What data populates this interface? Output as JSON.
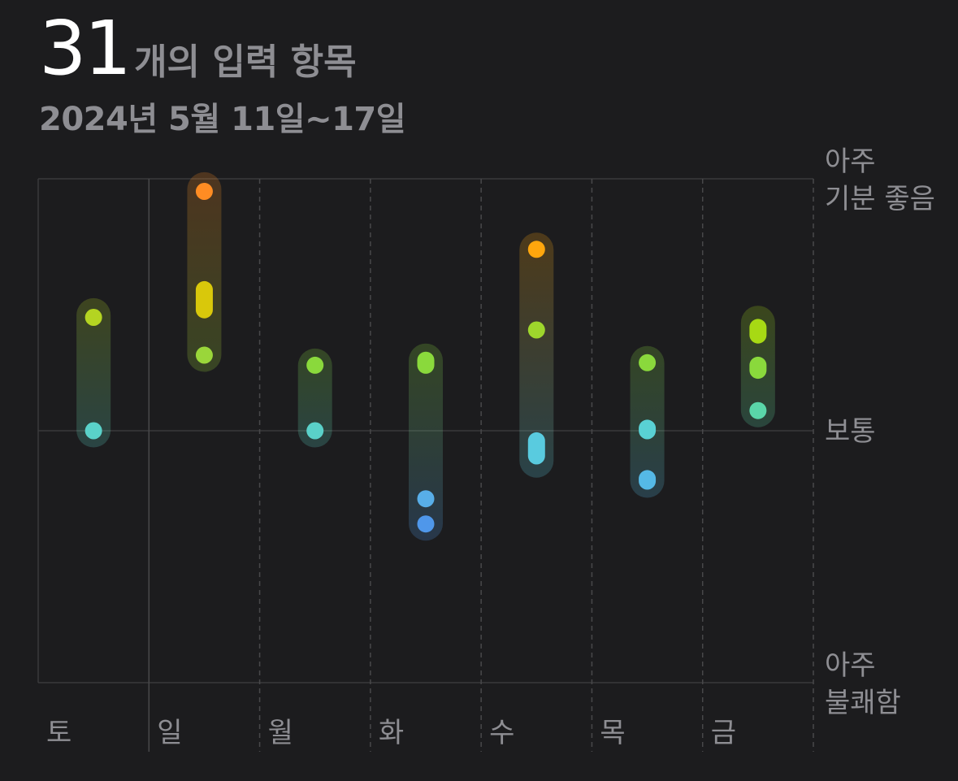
{
  "header": {
    "count": "31",
    "count_label": "개의 입력 항목",
    "date_range": "2024년 5월 11일~17일"
  },
  "chart_data": {
    "type": "range-dot",
    "x_categories": [
      "토",
      "일",
      "월",
      "화",
      "수",
      "목",
      "금"
    ],
    "y_labels": [
      {
        "value": 1,
        "lines": [
          "아주",
          "기분 좋음"
        ]
      },
      {
        "value": 0,
        "lines": [
          "보통"
        ]
      },
      {
        "value": -1,
        "lines": [
          "아주",
          "불쾌함"
        ]
      }
    ],
    "ylim": [
      -1,
      1
    ],
    "grid": true,
    "days": [
      {
        "day": "토",
        "range": [
          0.0,
          0.46
        ],
        "entries": [
          {
            "from": 0.45,
            "to": 0.45,
            "color": "#b4d422"
          },
          {
            "from": 0.0,
            "to": 0.0,
            "color": "#5ad1c9"
          }
        ]
      },
      {
        "day": "일",
        "range": [
          0.3,
          0.96
        ],
        "entries": [
          {
            "from": 0.95,
            "to": 0.95,
            "color": "#ff8c23"
          },
          {
            "from": 0.48,
            "to": 0.56,
            "color": "#d9c80b"
          },
          {
            "from": 0.3,
            "to": 0.3,
            "color": "#9ad63a"
          }
        ]
      },
      {
        "day": "월",
        "range": [
          0.0,
          0.26
        ],
        "entries": [
          {
            "from": 0.26,
            "to": 0.26,
            "color": "#8ad93c"
          },
          {
            "from": 0.0,
            "to": 0.0,
            "color": "#5ad1c9"
          }
        ]
      },
      {
        "day": "화",
        "range": [
          -0.37,
          0.28
        ],
        "entries": [
          {
            "from": 0.26,
            "to": 0.28,
            "color": "#8ad93c"
          },
          {
            "from": -0.27,
            "to": -0.27,
            "color": "#58aee8"
          },
          {
            "from": -0.37,
            "to": -0.37,
            "color": "#4f97ea"
          }
        ]
      },
      {
        "day": "수",
        "range": [
          -0.12,
          0.72
        ],
        "entries": [
          {
            "from": 0.72,
            "to": 0.72,
            "color": "#ffa60d"
          },
          {
            "from": 0.4,
            "to": 0.4,
            "color": "#9ed62c"
          },
          {
            "from": -0.1,
            "to": -0.04,
            "color": "#59cbdf"
          }
        ]
      },
      {
        "day": "목",
        "range": [
          -0.2,
          0.27
        ],
        "entries": [
          {
            "from": 0.27,
            "to": 0.27,
            "color": "#8ad93c"
          },
          {
            "from": 0.0,
            "to": 0.01,
            "color": "#59d1d4"
          },
          {
            "from": -0.2,
            "to": -0.19,
            "color": "#55b9e6"
          }
        ]
      },
      {
        "day": "금",
        "range": [
          0.08,
          0.43
        ],
        "entries": [
          {
            "from": 0.38,
            "to": 0.41,
            "color": "#a7d914"
          },
          {
            "from": 0.24,
            "to": 0.26,
            "color": "#8ad93c"
          },
          {
            "from": 0.08,
            "to": 0.08,
            "color": "#5ad6a9"
          }
        ]
      }
    ]
  },
  "colors": {
    "background": "#1c1c1e",
    "grid": "#3a3a3c",
    "label": "#8e8e93",
    "title": "#ffffff"
  }
}
